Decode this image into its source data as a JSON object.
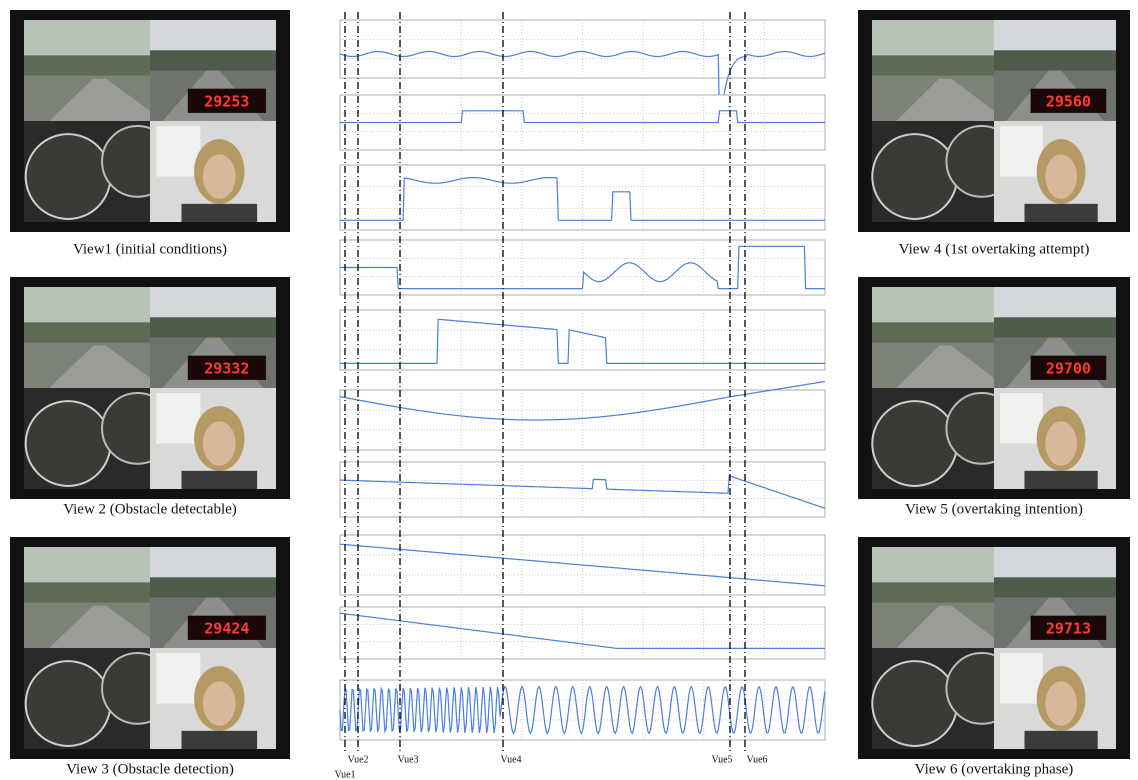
{
  "views": [
    {
      "caption": "View1 (initial conditions)",
      "counter": "29253"
    },
    {
      "caption": "View 2 (Obstacle detectable)",
      "counter": "29332"
    },
    {
      "caption": "View 3 (Obstacle detection)",
      "counter": "29424"
    },
    {
      "caption": "View 4 (1st overtaking attempt)",
      "counter": "29560"
    },
    {
      "caption": "View 5 (overtaking intention)",
      "counter": "29700"
    },
    {
      "caption": "View 6 (overtaking phase)",
      "counter": "29713"
    }
  ],
  "markers": [
    "Vue1",
    "Vue2",
    "Vue3",
    "Vue4",
    "Vue5",
    "Vue6"
  ]
}
